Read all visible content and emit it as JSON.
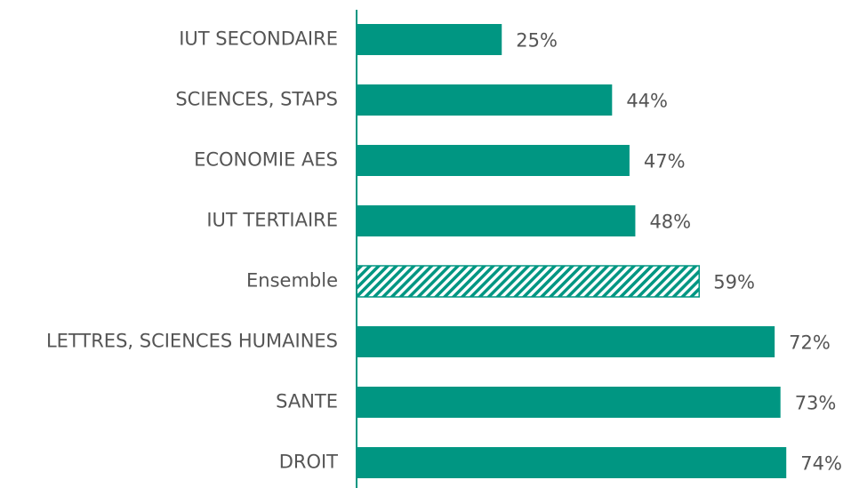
{
  "chart_data": {
    "type": "hbar",
    "categories": [
      "IUT SECONDAIRE",
      "SCIENCES, STAPS",
      "ECONOMIE AES",
      "IUT TERTIAIRE",
      "Ensemble",
      "LETTRES, SCIENCES HUMAINES",
      "SANTE",
      "DROIT"
    ],
    "values": [
      25,
      44,
      47,
      48,
      59,
      72,
      73,
      74
    ],
    "value_labels": [
      "25%",
      "44%",
      "47%",
      "48%",
      "59%",
      "72%",
      "73%",
      "74%"
    ],
    "color": "#009682",
    "hatched": [
      "Ensemble"
    ]
  }
}
